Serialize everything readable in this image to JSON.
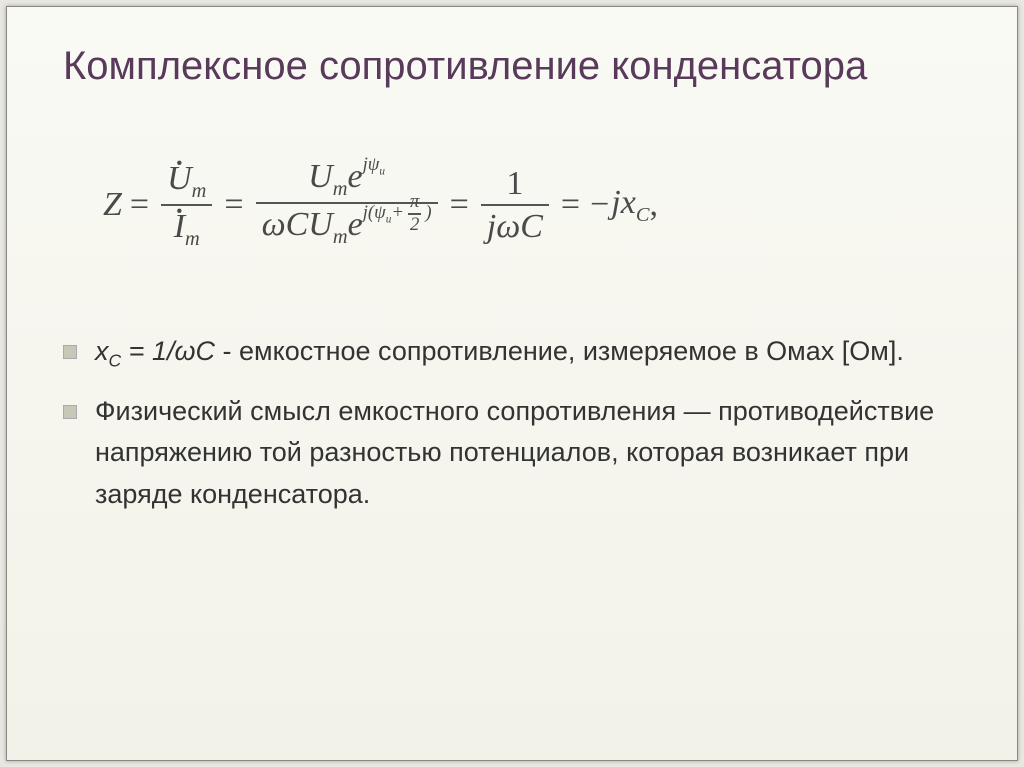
{
  "title": "Комплексное сопротивление конденсатора",
  "equation": {
    "Z": "Z",
    "eq": "=",
    "Udot": "U",
    "Idot": "I",
    "sub_m": "m",
    "e": "e",
    "j": "j",
    "psi_u": "ψ",
    "psi_u_sub": "u",
    "pi_half_num": "π",
    "pi_half_den": "2",
    "omega": "ω",
    "C": "C",
    "one": "1",
    "jomegaC": "jωC",
    "minus": "−",
    "jx": "jx",
    "xsub": "C",
    "comma": ","
  },
  "bullets": [
    {
      "lead_var": "x",
      "lead_sub": "С",
      "lead_rest": " = 1/ωС",
      "tail": " - емкостное сопротивление, измеряемое в Омах [Ом]."
    },
    {
      "full": "Физический смысл емкостного сопротивления — противодействие напряжению той разностью потенциалов, которая возникает при заряде конденсатора."
    }
  ],
  "colors": {
    "title": "#5a3a5a",
    "text": "#333333",
    "equation": "#4a4a4a",
    "bullet_bg": "#c8c8b8",
    "slide_bg_top": "#fafaf5",
    "slide_bg_bottom": "#f2f2e8",
    "page_bg": "#e8e8e0"
  },
  "typography": {
    "title_fontsize": 40,
    "body_fontsize": 27,
    "equation_fontsize": 34,
    "title_font": "Arial",
    "equation_font": "Times New Roman"
  }
}
